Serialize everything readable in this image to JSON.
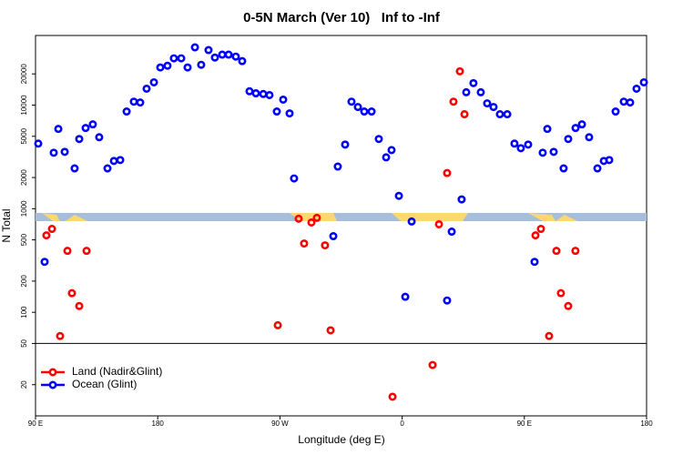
{
  "chart_data": {
    "type": "scatter",
    "title": "0-5N March (Ver 10)   Inf to -Inf",
    "x_label": "Longitude (deg E)",
    "y_label": "N Total",
    "xlim": [
      90,
      540
    ],
    "ylim": [
      10,
      47000
    ],
    "y_scale": "log",
    "xticks": [
      {
        "value": 90,
        "label": "90 E"
      },
      {
        "value": 180,
        "label": "180"
      },
      {
        "value": 270,
        "label": "90 W"
      },
      {
        "value": 360,
        "label": "0"
      },
      {
        "value": 450,
        "label": "90 E"
      },
      {
        "value": 540,
        "label": "180"
      }
    ],
    "yticks": [
      20,
      50,
      100,
      200,
      500,
      1000,
      2000,
      5000,
      10000,
      20000
    ],
    "reference_line": 50,
    "legend": "bottom left",
    "series": [
      {
        "name": "Land (Nadir&Glint)",
        "color": "#ff0000",
        "x": [
          98.0,
          102.1,
          108.1,
          113.5,
          116.8,
          122.2,
          127.6,
          268.4,
          283.8,
          287.8,
          293.2,
          297.2,
          303.2,
          307.3,
          352.9,
          382.4,
          387.1,
          393.1,
          397.8,
          402.5,
          405.9,
          458.2,
          462.2,
          468.2,
          473.6,
          476.9,
          482.3,
          487.6
        ],
        "values": [
          553,
          638,
          59,
          392,
          153,
          115,
          392,
          75,
          800,
          461,
          736,
          816,
          443,
          67,
          15.3,
          31,
          707,
          2210,
          10800,
          21200,
          8160,
          553,
          638,
          59,
          392,
          153,
          115,
          392
        ]
      },
      {
        "name": "Ocean (Glint)",
        "color": "#0000ff",
        "x": [
          92.0,
          96.7,
          103.4,
          106.8,
          111.5,
          118.8,
          122.2,
          126.9,
          132.2,
          136.9,
          143.0,
          147.7,
          152.4,
          157.1,
          162.4,
          167.1,
          171.8,
          177.2,
          181.9,
          187.2,
          191.9,
          197.3,
          202.0,
          207.4,
          212.0,
          217.4,
          222.1,
          227.5,
          232.2,
          237.5,
          242.2,
          247.6,
          252.3,
          257.7,
          262.3,
          267.7,
          272.4,
          277.1,
          280.4,
          309.3,
          312.6,
          318.0,
          322.7,
          327.4,
          332.1,
          337.5,
          342.8,
          348.2,
          352.2,
          357.6,
          362.3,
          367.0,
          393.1,
          396.5,
          403.8,
          407.2,
          412.5,
          417.9,
          422.6,
          427.3,
          432.0,
          437.4,
          442.7,
          447.4,
          452.8,
          457.5,
          463.5,
          466.9,
          471.6,
          478.9,
          482.3,
          487.7,
          492.4,
          497.7,
          503.8,
          508.5,
          512.5,
          517.2,
          523.2,
          527.9,
          532.6,
          538.0
        ],
        "values": [
          4250,
          307,
          3470,
          5890,
          3540,
          2450,
          4710,
          6010,
          6520,
          4900,
          2450,
          2890,
          2950,
          8670,
          10800,
          10600,
          14400,
          16600,
          23100,
          24000,
          28300,
          28300,
          23100,
          36100,
          24500,
          34000,
          28800,
          30700,
          30700,
          29400,
          26600,
          13600,
          13000,
          12800,
          12500,
          8670,
          11300,
          8320,
          1960,
          543,
          2550,
          4160,
          10800,
          9590,
          8670,
          8670,
          4710,
          3130,
          3680,
          1330,
          141,
          752,
          130,
          601,
          1230,
          13300,
          16300,
          13300,
          10400,
          9590,
          8160,
          8160,
          4250,
          3840,
          4160,
          307,
          3470,
          5890,
          3540,
          2450,
          4710,
          6010,
          6520,
          4900,
          2450,
          2890,
          2950,
          8670,
          10800,
          10600,
          14400,
          16600
        ]
      }
    ]
  }
}
